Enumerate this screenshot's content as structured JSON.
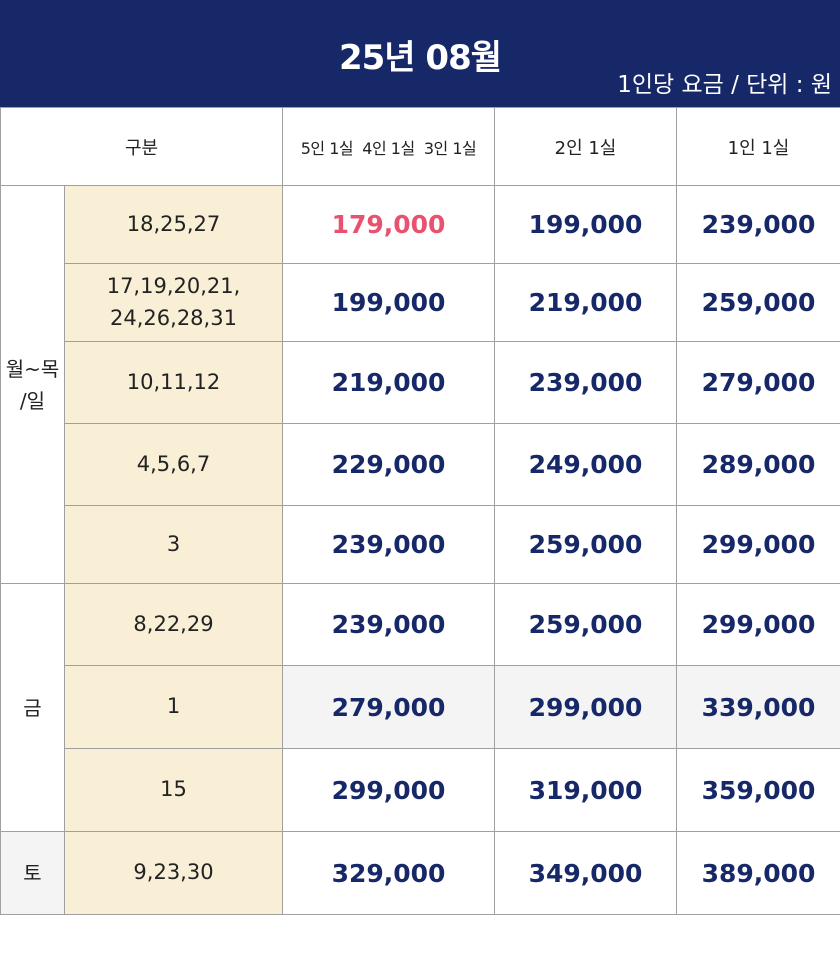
{
  "header": {
    "title": "25년 08월",
    "unit_note": "1인당 요금 / 단위 : 원"
  },
  "columns": [
    "구분",
    "5인 1실  4인 1실  3인 1실",
    "2인 1실",
    "1인 1실"
  ],
  "groups": {
    "weekday": "월~목\n/일",
    "friday": "금",
    "saturday": "토"
  },
  "rows": [
    {
      "dates": "18,25,27",
      "p1": "179,000",
      "p2": "199,000",
      "p3": "239,000"
    },
    {
      "dates": "17,19,20,21,\n24,26,28,31",
      "p1": "199,000",
      "p2": "219,000",
      "p3": "259,000"
    },
    {
      "dates": "10,11,12",
      "p1": "219,000",
      "p2": "239,000",
      "p3": "279,000"
    },
    {
      "dates": "4,5,6,7",
      "p1": "229,000",
      "p2": "249,000",
      "p3": "289,000"
    },
    {
      "dates": "3",
      "p1": "239,000",
      "p2": "259,000",
      "p3": "299,000"
    },
    {
      "dates": "8,22,29",
      "p1": "239,000",
      "p2": "259,000",
      "p3": "299,000"
    },
    {
      "dates": "1",
      "p1": "279,000",
      "p2": "299,000",
      "p3": "339,000"
    },
    {
      "dates": "15",
      "p1": "299,000",
      "p2": "319,000",
      "p3": "359,000"
    },
    {
      "dates": "9,23,30",
      "p1": "329,000",
      "p2": "349,000",
      "p3": "389,000"
    }
  ],
  "colors": {
    "header_bg": "#172868",
    "price_text": "#172868",
    "highlight_price": "#e8526f",
    "date_cell_bg": "#f8efd6",
    "grey_cell_bg": "#f4f4f4"
  }
}
